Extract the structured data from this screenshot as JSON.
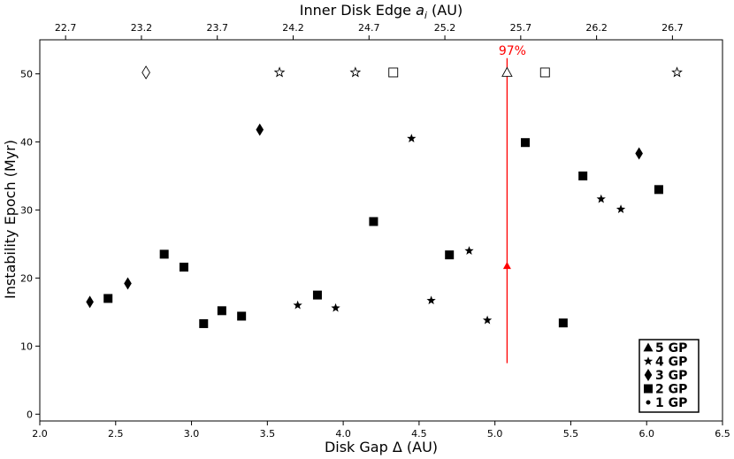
{
  "chart_data": {
    "type": "scatter",
    "xlabel": "Disk Gap Δ (AU)",
    "ylabel": "Instability Epoch (Myr)",
    "top_xlabel_prefix": "Inner Disk Edge ",
    "top_xlabel_var": "a",
    "top_xlabel_sub": "i",
    "top_xlabel_suffix": " (AU)",
    "xlim": [
      2.0,
      6.5
    ],
    "ylim": [
      -1,
      55
    ],
    "x_ticks": [
      "2.0",
      "2.5",
      "3.0",
      "3.5",
      "4.0",
      "4.5",
      "5.0",
      "5.5",
      "6.0",
      "6.5"
    ],
    "y_ticks": [
      "0",
      "10",
      "20",
      "30",
      "40",
      "50"
    ],
    "top_x_ticks": [
      {
        "x": 2.17,
        "label": "22.7"
      },
      {
        "x": 2.67,
        "label": "23.2"
      },
      {
        "x": 3.17,
        "label": "23.7"
      },
      {
        "x": 3.67,
        "label": "24.2"
      },
      {
        "x": 4.17,
        "label": "24.7"
      },
      {
        "x": 4.67,
        "label": "25.2"
      },
      {
        "x": 5.17,
        "label": "25.7"
      },
      {
        "x": 5.67,
        "label": "26.2"
      },
      {
        "x": 6.17,
        "label": "26.7"
      }
    ],
    "legend_position": "bottom-right",
    "series": [
      {
        "name": "5 GP",
        "marker": "triangle",
        "color": "#000000",
        "points": [],
        "open_points": [
          {
            "x": 5.08,
            "y": 50.2
          }
        ]
      },
      {
        "name": "4 GP",
        "marker": "star",
        "color": "#000000",
        "points": [
          {
            "x": 3.7,
            "y": 16.0
          },
          {
            "x": 3.95,
            "y": 15.6
          },
          {
            "x": 4.45,
            "y": 40.5
          },
          {
            "x": 4.58,
            "y": 16.7
          },
          {
            "x": 4.83,
            "y": 24.0
          },
          {
            "x": 4.95,
            "y": 13.8
          },
          {
            "x": 5.7,
            "y": 31.6
          },
          {
            "x": 5.83,
            "y": 30.1
          }
        ],
        "open_points": [
          {
            "x": 3.58,
            "y": 50.2
          },
          {
            "x": 4.08,
            "y": 50.2
          },
          {
            "x": 6.2,
            "y": 50.2
          }
        ]
      },
      {
        "name": "3 GP",
        "marker": "diamond",
        "color": "#000000",
        "points": [
          {
            "x": 2.33,
            "y": 16.5
          },
          {
            "x": 2.58,
            "y": 19.2
          },
          {
            "x": 3.45,
            "y": 41.8
          },
          {
            "x": 5.95,
            "y": 38.3
          }
        ],
        "open_points": [
          {
            "x": 2.7,
            "y": 50.2
          }
        ]
      },
      {
        "name": "2 GP",
        "marker": "square",
        "color": "#000000",
        "points": [
          {
            "x": 2.45,
            "y": 17.0
          },
          {
            "x": 2.82,
            "y": 23.5
          },
          {
            "x": 2.95,
            "y": 21.6
          },
          {
            "x": 3.08,
            "y": 13.3
          },
          {
            "x": 3.2,
            "y": 15.2
          },
          {
            "x": 3.33,
            "y": 14.4
          },
          {
            "x": 3.83,
            "y": 17.5
          },
          {
            "x": 4.2,
            "y": 28.3
          },
          {
            "x": 4.7,
            "y": 23.4
          },
          {
            "x": 5.2,
            "y": 39.9
          },
          {
            "x": 5.45,
            "y": 13.4
          },
          {
            "x": 5.58,
            "y": 35.0
          },
          {
            "x": 6.08,
            "y": 33.0
          }
        ],
        "open_points": [
          {
            "x": 4.33,
            "y": 50.2
          },
          {
            "x": 5.33,
            "y": 50.2
          }
        ]
      },
      {
        "name": "1 GP",
        "marker": "circle",
        "color": "#000000",
        "points": [],
        "open_points": []
      }
    ],
    "highlight": {
      "label": "97%",
      "color": "#ff0000",
      "x": 5.08,
      "y": 21.8,
      "line_y_range": [
        7.5,
        52.3
      ]
    }
  }
}
